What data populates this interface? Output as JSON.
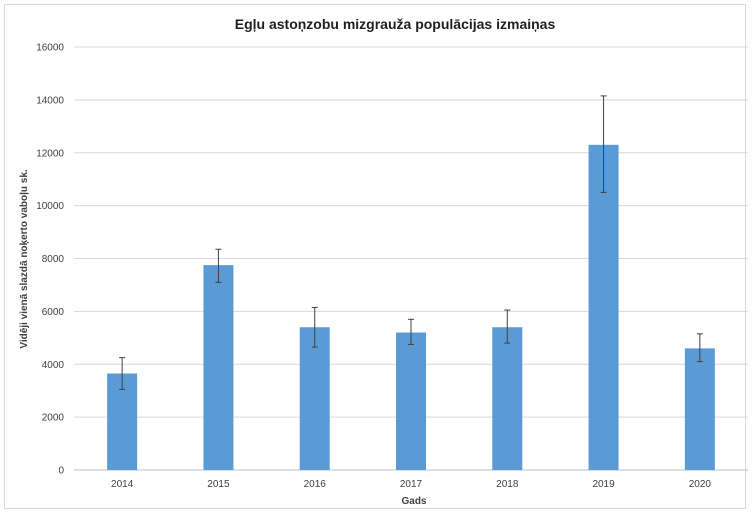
{
  "chart_data": {
    "type": "bar",
    "title": "Egļu astoņzobu mizgrauža populācijas izmaiņas",
    "xlabel": "Gads",
    "ylabel": "Vidēji vienā slazdā noķerto vaboļu sk.",
    "categories": [
      "2014",
      "2015",
      "2016",
      "2017",
      "2018",
      "2019",
      "2020"
    ],
    "values": [
      3650,
      7750,
      5400,
      5200,
      5400,
      12300,
      4600
    ],
    "error_low": [
      3050,
      7100,
      4650,
      4750,
      4800,
      10500,
      4100
    ],
    "error_high": [
      4250,
      8350,
      6150,
      5700,
      6050,
      14150,
      5150
    ],
    "ylim": [
      0,
      16000
    ],
    "yticks": [
      "0",
      "2000",
      "4000",
      "6000",
      "8000",
      "10000",
      "12000",
      "14000",
      "16000"
    ],
    "grid": true,
    "legend": "none",
    "bar_color": "#5b9bd5",
    "grid_color": "#d9d9d9",
    "error_color": "#404040"
  }
}
